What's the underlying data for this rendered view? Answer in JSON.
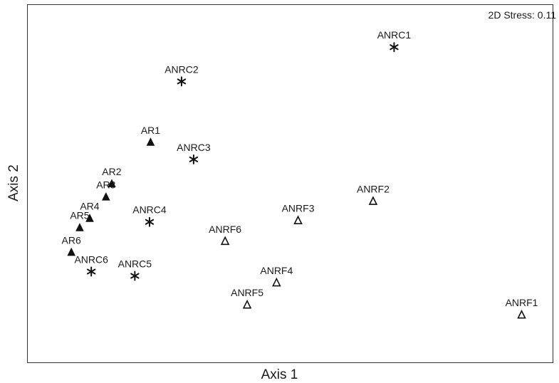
{
  "chart_data": {
    "type": "scatter",
    "title": "",
    "xlabel": "Axis 1",
    "ylabel": "Axis 2",
    "annotation": "2D Stress: 0.11",
    "xlim": [
      0,
      100
    ],
    "ylim": [
      0,
      100
    ],
    "grid": false,
    "series": [
      {
        "marker": "triangle-filled",
        "points": [
          {
            "label": "AR1",
            "x": 23.4,
            "y": 61.6
          },
          {
            "label": "AR2",
            "x": 16.0,
            "y": 50.0
          },
          {
            "label": "AR3",
            "x": 14.9,
            "y": 46.3
          },
          {
            "label": "AR4",
            "x": 11.8,
            "y": 40.3
          },
          {
            "label": "AR5",
            "x": 9.9,
            "y": 37.7
          },
          {
            "label": "AR6",
            "x": 8.3,
            "y": 30.8
          }
        ]
      },
      {
        "marker": "asterisk",
        "points": [
          {
            "label": "ANRC1",
            "x": 69.8,
            "y": 88.2
          },
          {
            "label": "ANRC2",
            "x": 29.3,
            "y": 78.6
          },
          {
            "label": "ANRC3",
            "x": 31.6,
            "y": 56.8
          },
          {
            "label": "ANRC4",
            "x": 23.2,
            "y": 39.3
          },
          {
            "label": "ANRC5",
            "x": 20.4,
            "y": 24.2
          },
          {
            "label": "ANRC6",
            "x": 12.1,
            "y": 25.4
          }
        ]
      },
      {
        "marker": "triangle-open",
        "points": [
          {
            "label": "ANRF1",
            "x": 94.1,
            "y": 13.3
          },
          {
            "label": "ANRF2",
            "x": 65.8,
            "y": 45.1
          },
          {
            "label": "ANRF3",
            "x": 51.5,
            "y": 39.7
          },
          {
            "label": "ANRF4",
            "x": 47.4,
            "y": 22.3
          },
          {
            "label": "ANRF5",
            "x": 41.8,
            "y": 16.1
          },
          {
            "label": "ANRF6",
            "x": 37.6,
            "y": 33.9
          }
        ]
      }
    ]
  }
}
